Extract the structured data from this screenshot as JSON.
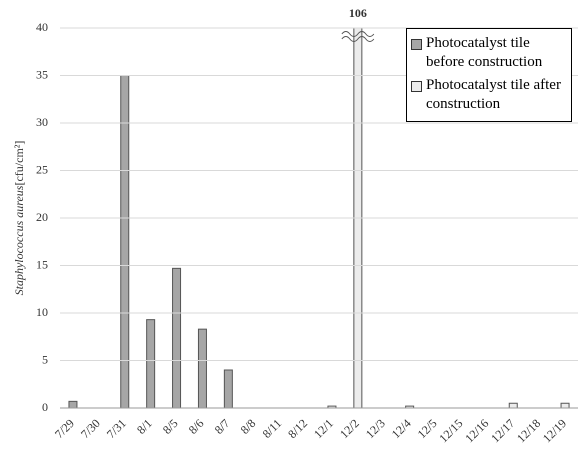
{
  "chart_data": {
    "type": "bar",
    "y_label": {
      "species": "Staphylococcus aureus",
      "unit": "[cfu/cm²]"
    },
    "categories": [
      "7/29",
      "7/30",
      "7/31",
      "8/1",
      "8/5",
      "8/6",
      "8/7",
      "8/8",
      "8/11",
      "8/12",
      "12/1",
      "12/2",
      "12/3",
      "12/4",
      "12/5",
      "12/15",
      "12/16",
      "12/17",
      "12/18",
      "12/19"
    ],
    "series": [
      {
        "name": "Photocatalyst tile before construction",
        "color": "#a6a6a6",
        "values": [
          0.7,
          0,
          35,
          9.3,
          14.7,
          8.3,
          4,
          0,
          0,
          0,
          null,
          null,
          null,
          null,
          null,
          null,
          null,
          null,
          null,
          null
        ]
      },
      {
        "name": "Photocatalyst tile after construction",
        "color": "#ececec",
        "values": [
          null,
          null,
          null,
          null,
          null,
          null,
          null,
          null,
          null,
          null,
          0.2,
          106,
          0,
          0.2,
          0,
          0,
          0,
          0.5,
          0,
          0.5
        ],
        "value_labels": [
          null,
          null,
          null,
          null,
          null,
          null,
          null,
          null,
          null,
          null,
          null,
          "106",
          null,
          null,
          null,
          null,
          null,
          null,
          null,
          null
        ]
      }
    ],
    "ylim": [
      0,
      40
    ],
    "yticks": [
      0,
      5,
      10,
      15,
      20,
      25,
      30,
      35,
      40
    ],
    "grid": true,
    "legend": "top-right"
  }
}
